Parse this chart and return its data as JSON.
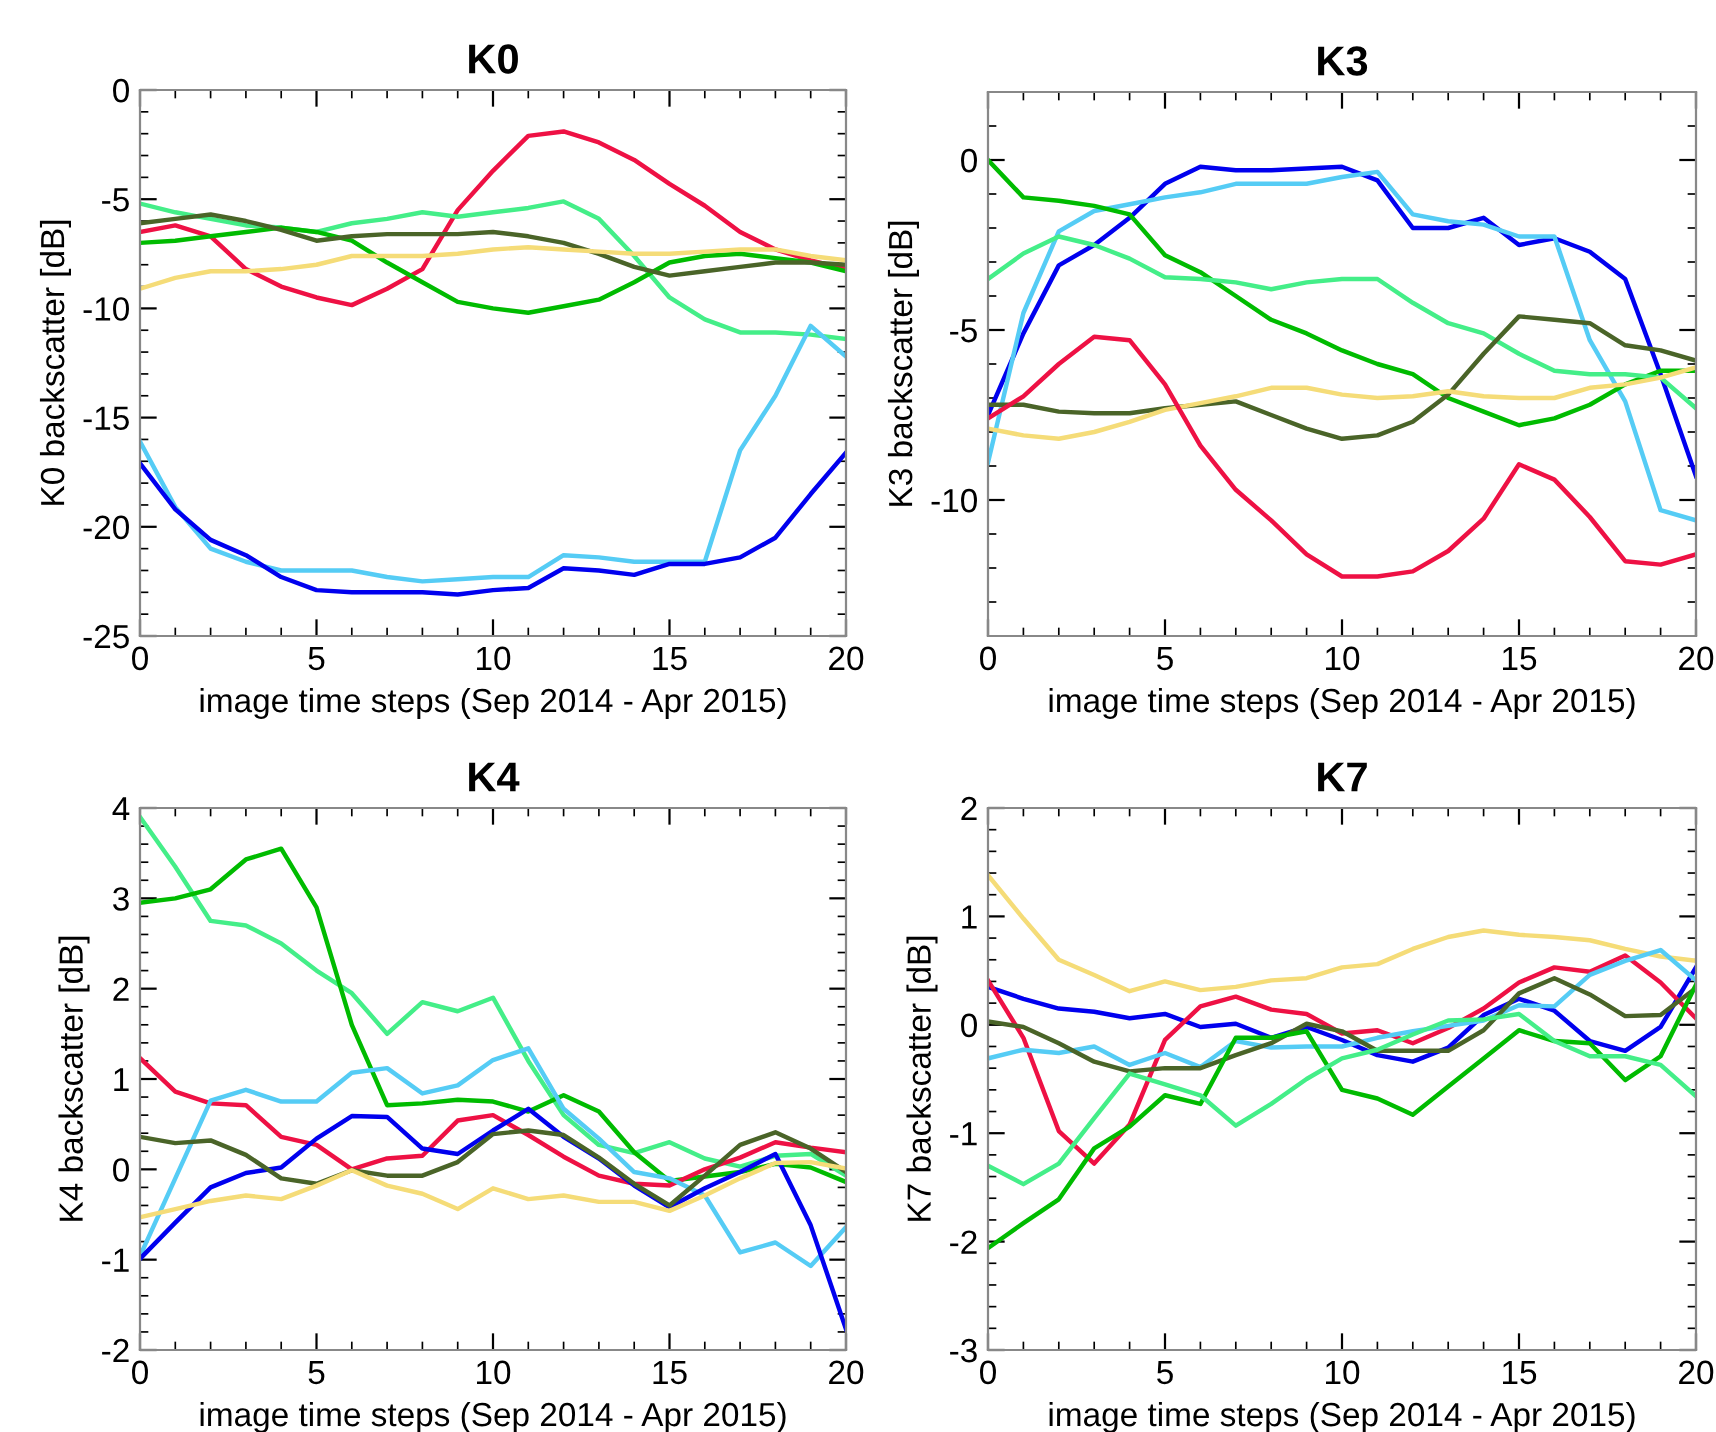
{
  "chart_data": [
    {
      "type": "line",
      "title": "K0",
      "xlabel": "image time steps (Sep 2014 - Apr 2015)",
      "ylabel": "K0 backscatter [dB]",
      "x": [
        0,
        1,
        2,
        3,
        4,
        5,
        6,
        7,
        8,
        9,
        10,
        11,
        12,
        13,
        14,
        15,
        16,
        17,
        18,
        19,
        20
      ],
      "xlim": [
        0,
        20
      ],
      "xticks": [
        0,
        5,
        10,
        15,
        20
      ],
      "ylim": [
        -25,
        0
      ],
      "yticks": [
        -25,
        -20,
        -15,
        -10,
        -5,
        0
      ],
      "grid": false,
      "legend": false,
      "marker": "none",
      "line_style": "solid",
      "series": [
        {
          "color": "#ee1144",
          "values": [
            -6.5,
            -6.2,
            -6.7,
            -8.2,
            -9.0,
            -9.5,
            -9.85,
            -9.1,
            -8.2,
            -5.5,
            -3.7,
            -2.1,
            -1.9,
            -2.4,
            -3.2,
            -4.3,
            -5.3,
            -6.5,
            -7.3,
            -7.8,
            -8.2
          ]
        },
        {
          "color": "#44ee88",
          "values": [
            -5.2,
            -5.6,
            -5.9,
            -6.2,
            -6.3,
            -6.5,
            -6.1,
            -5.9,
            -5.6,
            -5.8,
            -5.6,
            -5.4,
            -5.1,
            -5.9,
            -7.6,
            -9.5,
            -10.5,
            -11.1,
            -11.1,
            -11.2,
            -11.4
          ]
        },
        {
          "color": "#00bb00",
          "values": [
            -7.0,
            -6.9,
            -6.7,
            -6.5,
            -6.3,
            -6.5,
            -6.9,
            -7.9,
            -8.8,
            -9.7,
            -10.0,
            -10.2,
            -9.9,
            -9.6,
            -8.8,
            -7.9,
            -7.6,
            -7.5,
            -7.7,
            -7.9,
            -8.3
          ]
        },
        {
          "color": "#4a6428",
          "values": [
            -6.1,
            -5.9,
            -5.7,
            -6.0,
            -6.4,
            -6.9,
            -6.7,
            -6.6,
            -6.6,
            -6.6,
            -6.5,
            -6.7,
            -7.0,
            -7.5,
            -8.1,
            -8.5,
            -8.3,
            -8.1,
            -7.9,
            -7.9,
            -8.0
          ]
        },
        {
          "color": "#f5dc78",
          "values": [
            -9.1,
            -8.6,
            -8.3,
            -8.3,
            -8.2,
            -8.0,
            -7.6,
            -7.6,
            -7.6,
            -7.5,
            -7.3,
            -7.2,
            -7.3,
            -7.4,
            -7.5,
            -7.5,
            -7.4,
            -7.3,
            -7.3,
            -7.6,
            -7.8
          ]
        },
        {
          "color": "#55ccf5",
          "values": [
            -16.1,
            -19.1,
            -21.0,
            -21.6,
            -22.0,
            -22.0,
            -22.0,
            -22.3,
            -22.5,
            -22.4,
            -22.3,
            -22.3,
            -21.3,
            -21.4,
            -21.6,
            -21.6,
            -21.6,
            -16.5,
            -14.0,
            -10.8,
            -12.2
          ]
        },
        {
          "color": "#0000ee",
          "values": [
            -17.1,
            -19.2,
            -20.6,
            -21.3,
            -22.3,
            -22.9,
            -23.0,
            -23.0,
            -23.0,
            -23.1,
            -22.9,
            -22.8,
            -21.9,
            -22.0,
            -22.2,
            -21.7,
            -21.7,
            -21.4,
            -20.5,
            -18.5,
            -16.6
          ]
        }
      ]
    },
    {
      "type": "line",
      "title": "K3",
      "xlabel": "image time steps (Sep 2014 - Apr 2015)",
      "ylabel": "K3 backscatter [dB]",
      "x": [
        0,
        1,
        2,
        3,
        4,
        5,
        6,
        7,
        8,
        9,
        10,
        11,
        12,
        13,
        14,
        15,
        16,
        17,
        18,
        19,
        20
      ],
      "xlim": [
        0,
        20
      ],
      "xticks": [
        0,
        5,
        10,
        15,
        20
      ],
      "ylim": [
        -14,
        2
      ],
      "yticks": [
        -10,
        -5,
        0
      ],
      "grid": false,
      "legend": false,
      "marker": "none",
      "line_style": "solid",
      "series": [
        {
          "color": "#0000ee",
          "values": [
            -7.5,
            -5.1,
            -3.1,
            -2.5,
            -1.7,
            -0.7,
            -0.2,
            -0.3,
            -0.3,
            -0.25,
            -0.2,
            -0.6,
            -2.0,
            -2.0,
            -1.7,
            -2.5,
            -2.3,
            -2.7,
            -3.5,
            -6.3,
            -9.3
          ]
        },
        {
          "color": "#55ccf5",
          "values": [
            -8.9,
            -4.5,
            -2.1,
            -1.5,
            -1.3,
            -1.1,
            -0.95,
            -0.7,
            -0.7,
            -0.7,
            -0.5,
            -0.35,
            -1.6,
            -1.8,
            -1.9,
            -2.25,
            -2.25,
            -5.3,
            -7.1,
            -10.3,
            -10.6
          ]
        },
        {
          "color": "#00bb00",
          "values": [
            0,
            -1.1,
            -1.2,
            -1.35,
            -1.6,
            -2.8,
            -3.3,
            -4.0,
            -4.7,
            -5.1,
            -5.6,
            -6.0,
            -6.3,
            -7.0,
            -7.4,
            -7.8,
            -7.6,
            -7.2,
            -6.6,
            -6.2,
            -6.2
          ]
        },
        {
          "color": "#44ee88",
          "values": [
            -3.5,
            -2.75,
            -2.25,
            -2.5,
            -2.9,
            -3.45,
            -3.5,
            -3.6,
            -3.8,
            -3.6,
            -3.5,
            -3.5,
            -4.2,
            -4.8,
            -5.1,
            -5.7,
            -6.2,
            -6.3,
            -6.3,
            -6.4,
            -7.3
          ]
        },
        {
          "color": "#4a6428",
          "values": [
            -7.2,
            -7.2,
            -7.4,
            -7.45,
            -7.45,
            -7.3,
            -7.2,
            -7.1,
            -7.5,
            -7.9,
            -8.2,
            -8.1,
            -7.7,
            -6.9,
            -5.7,
            -4.6,
            -4.7,
            -4.8,
            -5.45,
            -5.6,
            -5.9
          ]
        },
        {
          "color": "#f5dc78",
          "values": [
            -7.9,
            -8.1,
            -8.2,
            -8.0,
            -7.7,
            -7.35,
            -7.15,
            -6.95,
            -6.7,
            -6.7,
            -6.9,
            -7.0,
            -6.95,
            -6.8,
            -6.95,
            -7.0,
            -7.0,
            -6.7,
            -6.6,
            -6.4,
            -6.1
          ]
        },
        {
          "color": "#ee1144",
          "values": [
            -7.6,
            -6.95,
            -6.0,
            -5.2,
            -5.3,
            -6.6,
            -8.4,
            -9.7,
            -10.6,
            -11.6,
            -12.25,
            -12.25,
            -12.1,
            -11.5,
            -10.55,
            -8.95,
            -9.4,
            -10.5,
            -11.8,
            -11.9,
            -11.6
          ]
        }
      ]
    },
    {
      "type": "line",
      "title": "K4",
      "xlabel": "image time steps (Sep 2014 - Apr 2015)",
      "ylabel": "K4 backscatter [dB]",
      "x": [
        0,
        1,
        2,
        3,
        4,
        5,
        6,
        7,
        8,
        9,
        10,
        11,
        12,
        13,
        14,
        15,
        16,
        17,
        18,
        19,
        20
      ],
      "xlim": [
        0,
        20
      ],
      "xticks": [
        0,
        5,
        10,
        15,
        20
      ],
      "ylim": [
        -2,
        4
      ],
      "yticks": [
        -2,
        -1,
        0,
        1,
        2,
        3,
        4
      ],
      "grid": false,
      "legend": false,
      "marker": "none",
      "line_style": "solid",
      "series": [
        {
          "color": "#44ee88",
          "values": [
            3.9,
            3.35,
            2.75,
            2.7,
            2.5,
            2.2,
            1.95,
            1.5,
            1.85,
            1.75,
            1.9,
            1.2,
            0.6,
            0.27,
            0.18,
            0.3,
            0.12,
            0.03,
            0.15,
            0.17,
            -0.07
          ]
        },
        {
          "color": "#00bb00",
          "values": [
            2.95,
            3.0,
            3.1,
            3.43,
            3.55,
            2.9,
            1.6,
            0.71,
            0.73,
            0.77,
            0.75,
            0.64,
            0.82,
            0.64,
            0.19,
            -0.13,
            -0.08,
            -0.03,
            0.06,
            0.02,
            -0.14
          ]
        },
        {
          "color": "#ee1144",
          "values": [
            1.23,
            0.86,
            0.73,
            0.71,
            0.36,
            0.27,
            0.0,
            0.12,
            0.15,
            0.54,
            0.6,
            0.38,
            0.14,
            -0.07,
            -0.16,
            -0.18,
            0,
            0.13,
            0.3,
            0.24,
            0.19
          ]
        },
        {
          "color": "#55ccf5",
          "values": [
            -0.96,
            -0.1,
            0.76,
            0.88,
            0.75,
            0.75,
            1.07,
            1.12,
            0.84,
            0.93,
            1.21,
            1.34,
            0.67,
            0.34,
            -0.03,
            -0.1,
            -0.29,
            -0.92,
            -0.81,
            -1.07,
            -0.64
          ]
        },
        {
          "color": "#0000ee",
          "values": [
            -0.99,
            -0.59,
            -0.2,
            -0.04,
            0.02,
            0.34,
            0.59,
            0.58,
            0.23,
            0.17,
            0.43,
            0.67,
            0.36,
            0.12,
            -0.18,
            -0.42,
            -0.21,
            -0.03,
            0.17,
            -0.62,
            -1.77
          ]
        },
        {
          "color": "#4a6428",
          "values": [
            0.36,
            0.29,
            0.32,
            0.16,
            -0.1,
            -0.16,
            -0.01,
            -0.07,
            -0.07,
            0.08,
            0.39,
            0.43,
            0.38,
            0.13,
            -0.16,
            -0.4,
            -0.07,
            0.27,
            0.41,
            0.23,
            -0.03
          ]
        },
        {
          "color": "#f5dc78",
          "values": [
            -0.53,
            -0.44,
            -0.35,
            -0.29,
            -0.33,
            -0.18,
            -0.01,
            -0.18,
            -0.27,
            -0.44,
            -0.21,
            -0.33,
            -0.29,
            -0.36,
            -0.36,
            -0.46,
            -0.29,
            -0.1,
            0.07,
            0.08,
            0.01
          ]
        }
      ]
    },
    {
      "type": "line",
      "title": "K7",
      "xlabel": "image time steps (Sep 2014 - Apr 2015)",
      "ylabel": "K7 backscatter [dB]",
      "x": [
        0,
        1,
        2,
        3,
        4,
        5,
        6,
        7,
        8,
        9,
        10,
        11,
        12,
        13,
        14,
        15,
        16,
        17,
        18,
        19,
        20
      ],
      "xlim": [
        0,
        20
      ],
      "xticks": [
        0,
        5,
        10,
        15,
        20
      ],
      "ylim": [
        -3,
        2
      ],
      "yticks": [
        -3,
        -2,
        -1,
        0,
        1,
        2
      ],
      "grid": false,
      "legend": false,
      "marker": "none",
      "line_style": "solid",
      "series": [
        {
          "color": "#f5dc78",
          "values": [
            1.38,
            0.98,
            0.6,
            0.46,
            0.31,
            0.4,
            0.32,
            0.35,
            0.41,
            0.43,
            0.53,
            0.56,
            0.7,
            0.81,
            0.87,
            0.83,
            0.81,
            0.78,
            0.7,
            0.63,
            0.59
          ]
        },
        {
          "color": "#0000ee",
          "values": [
            0.35,
            0.24,
            0.15,
            0.12,
            0.06,
            0.1,
            -0.02,
            0.01,
            -0.12,
            -0.02,
            -0.14,
            -0.28,
            -0.34,
            -0.21,
            0.09,
            0.24,
            0.13,
            -0.15,
            -0.24,
            -0.02,
            0.53
          ]
        },
        {
          "color": "#ee1144",
          "values": [
            0.41,
            -0.12,
            -0.98,
            -1.28,
            -0.92,
            -0.14,
            0.17,
            0.26,
            0.14,
            0.1,
            -0.08,
            -0.05,
            -0.17,
            -0.03,
            0.15,
            0.39,
            0.53,
            0.49,
            0.64,
            0.39,
            0.06
          ]
        },
        {
          "color": "#55ccf5",
          "values": [
            -0.31,
            -0.23,
            -0.26,
            -0.2,
            -0.37,
            -0.26,
            -0.39,
            -0.15,
            -0.21,
            -0.2,
            -0.2,
            -0.12,
            -0.06,
            -0.01,
            0.04,
            0.18,
            0.17,
            0.46,
            0.59,
            0.69,
            0.41
          ]
        },
        {
          "color": "#4a6428",
          "values": [
            0.03,
            -0.02,
            -0.17,
            -0.34,
            -0.43,
            -0.4,
            -0.4,
            -0.28,
            -0.17,
            0.01,
            -0.06,
            -0.24,
            -0.24,
            -0.24,
            -0.05,
            0.29,
            0.43,
            0.28,
            0.08,
            0.09,
            0.34
          ]
        },
        {
          "color": "#00bb00",
          "values": [
            -2.06,
            -1.83,
            -1.61,
            -1.14,
            -0.94,
            -0.65,
            -0.73,
            -0.12,
            -0.12,
            -0.06,
            -0.6,
            -0.68,
            -0.83,
            -0.57,
            -0.31,
            -0.05,
            -0.15,
            -0.17,
            -0.51,
            -0.29,
            0.37
          ]
        },
        {
          "color": "#44ee88",
          "values": [
            -1.3,
            -1.47,
            -1.28,
            -0.86,
            -0.45,
            -0.55,
            -0.65,
            -0.93,
            -0.73,
            -0.5,
            -0.31,
            -0.23,
            -0.09,
            0.04,
            0.05,
            0.1,
            -0.15,
            -0.29,
            -0.29,
            -0.37,
            -0.66
          ]
        }
      ]
    }
  ]
}
